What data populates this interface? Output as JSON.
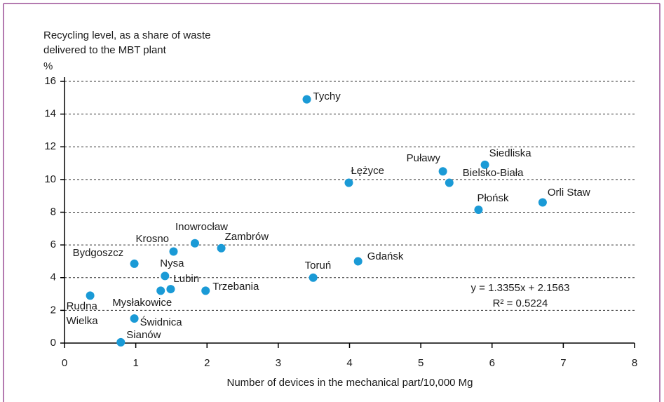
{
  "chart_data": {
    "type": "scatter",
    "ylabel": "Recycling level, as a share of waste delivered to the MBT plant",
    "yunit": "%",
    "xlabel": "Number of devices in the mechanical part/10,000 Mg",
    "color": "#1a9ad6",
    "names": [
      "Tychy",
      "Łężyce",
      "Puławy",
      "Siedliska",
      "Bielsko-Biała",
      "Płońsk",
      "Orli Staw",
      "Inowrocław",
      "Zambrów",
      "Krosno",
      "Bydgoszcz",
      "Gdańsk",
      "Nysa",
      "Toruń",
      "Lubin",
      "Mysłakowice",
      "Trzebania",
      "Rudna Wielka",
      "Świdnica",
      "Sianów"
    ],
    "x": [
      3.4,
      3.99,
      5.31,
      5.9,
      5.4,
      5.81,
      6.71,
      1.83,
      2.2,
      1.53,
      0.98,
      4.12,
      1.41,
      3.49,
      1.49,
      1.35,
      1.98,
      0.36,
      0.98,
      0.79
    ],
    "y": [
      14.9,
      9.8,
      10.5,
      10.9,
      9.8,
      8.15,
      8.6,
      6.1,
      5.8,
      5.6,
      4.85,
      5.0,
      4.1,
      4.0,
      3.3,
      3.2,
      3.2,
      2.9,
      1.5,
      0.05
    ],
    "xlim": [
      0,
      8
    ],
    "xticks": [
      0,
      1,
      2,
      3,
      4,
      5,
      6,
      7,
      8
    ],
    "ylim": [
      0,
      16
    ],
    "yticks": [
      0,
      2,
      4,
      6,
      8,
      10,
      12,
      14,
      16
    ],
    "grid": true,
    "annotations": [
      "y = 1.3355x + 2.1563",
      "R² = 0.5224"
    ]
  }
}
